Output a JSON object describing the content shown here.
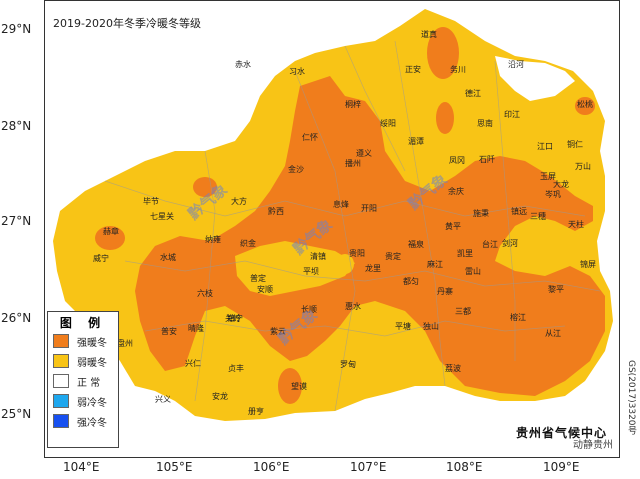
{
  "title": "2019-2020年冬季冷暖冬等级",
  "colors": {
    "strong_warm": "#F07D1C",
    "weak_warm": "#F8C416",
    "normal": "#FFFFFF",
    "weak_cold": "#1EA7EE",
    "strong_cold": "#1750F0",
    "boundary": "#9a9a9a"
  },
  "axes": {
    "lat_labels": [
      "29°N",
      "28°N",
      "27°N",
      "26°N",
      "25°N"
    ],
    "lon_labels": [
      "104°E",
      "105°E",
      "106°E",
      "107°E",
      "108°E",
      "109°E"
    ]
  },
  "legend": {
    "title": "图 例",
    "items": [
      {
        "label": "强暖冬",
        "color": "#F07D1C"
      },
      {
        "label": "弱暖冬",
        "color": "#F8C416"
      },
      {
        "label": "正  常",
        "color": "#FFFFFF"
      },
      {
        "label": "弱冷冬",
        "color": "#1EA7EE"
      },
      {
        "label": "强冷冬",
        "color": "#1750F0"
      }
    ]
  },
  "places": [
    {
      "name": "道真"
    },
    {
      "name": "务川"
    },
    {
      "name": "正安"
    },
    {
      "name": "沿河"
    },
    {
      "name": "赤水"
    },
    {
      "name": "习水"
    },
    {
      "name": "桐梓"
    },
    {
      "name": "德江"
    },
    {
      "name": "绥阳"
    },
    {
      "name": "印江"
    },
    {
      "name": "思南"
    },
    {
      "name": "仁怀"
    },
    {
      "name": "湄潭"
    },
    {
      "name": "江口"
    },
    {
      "name": "铜仁"
    },
    {
      "name": "凤冈"
    },
    {
      "name": "石阡"
    },
    {
      "name": "遵义"
    },
    {
      "name": "播州"
    },
    {
      "name": "金沙"
    },
    {
      "name": "万山"
    },
    {
      "name": "岑巩"
    },
    {
      "name": "余庆"
    },
    {
      "name": "镇远"
    },
    {
      "name": "施秉"
    },
    {
      "name": "三穗"
    },
    {
      "name": "大方"
    },
    {
      "name": "黔西"
    },
    {
      "name": "息烽"
    },
    {
      "name": "开阳"
    },
    {
      "name": "天柱"
    },
    {
      "name": "黄平"
    },
    {
      "name": "毕节"
    },
    {
      "name": "织金"
    },
    {
      "name": "清镇"
    },
    {
      "name": "贵阳"
    },
    {
      "name": "福泉"
    },
    {
      "name": "纳雍"
    },
    {
      "name": "剑河"
    },
    {
      "name": "凯里"
    },
    {
      "name": "台江"
    },
    {
      "name": "赫章"
    },
    {
      "name": "雷山"
    },
    {
      "name": "黎平"
    },
    {
      "name": "平坝"
    },
    {
      "name": "龙里"
    },
    {
      "name": "贵定"
    },
    {
      "name": "麻江"
    },
    {
      "name": "锦屏"
    },
    {
      "name": "水城"
    },
    {
      "name": "普定"
    },
    {
      "name": "安顺"
    },
    {
      "name": "长顺"
    },
    {
      "name": "都匀"
    },
    {
      "name": "丹寨"
    },
    {
      "name": "榕江"
    },
    {
      "name": "从江"
    },
    {
      "name": "六枝"
    },
    {
      "name": "镇宁"
    },
    {
      "name": "紫云"
    },
    {
      "name": "惠水"
    },
    {
      "name": "三都"
    },
    {
      "name": "平塘"
    },
    {
      "name": "独山"
    },
    {
      "name": "荔波"
    },
    {
      "name": "普安"
    },
    {
      "name": "晴隆"
    },
    {
      "name": "关岭"
    },
    {
      "name": "罗甸"
    },
    {
      "name": "望谟"
    },
    {
      "name": "兴仁"
    },
    {
      "name": "贞丰"
    },
    {
      "name": "安龙"
    },
    {
      "name": "册亨"
    },
    {
      "name": "兴义"
    },
    {
      "name": "盘州"
    },
    {
      "name": "威宁"
    },
    {
      "name": "七星关"
    },
    {
      "name": "大龙"
    },
    {
      "name": "松桃"
    },
    {
      "name": "玉屏"
    }
  ],
  "watermarks": [
    "黔气象",
    "黔气象",
    "黔气象",
    "黔气象"
  ],
  "footer": "贵州省气候中心",
  "map_code": "GS(2017)3320号",
  "corner_mark": "动静贵州"
}
